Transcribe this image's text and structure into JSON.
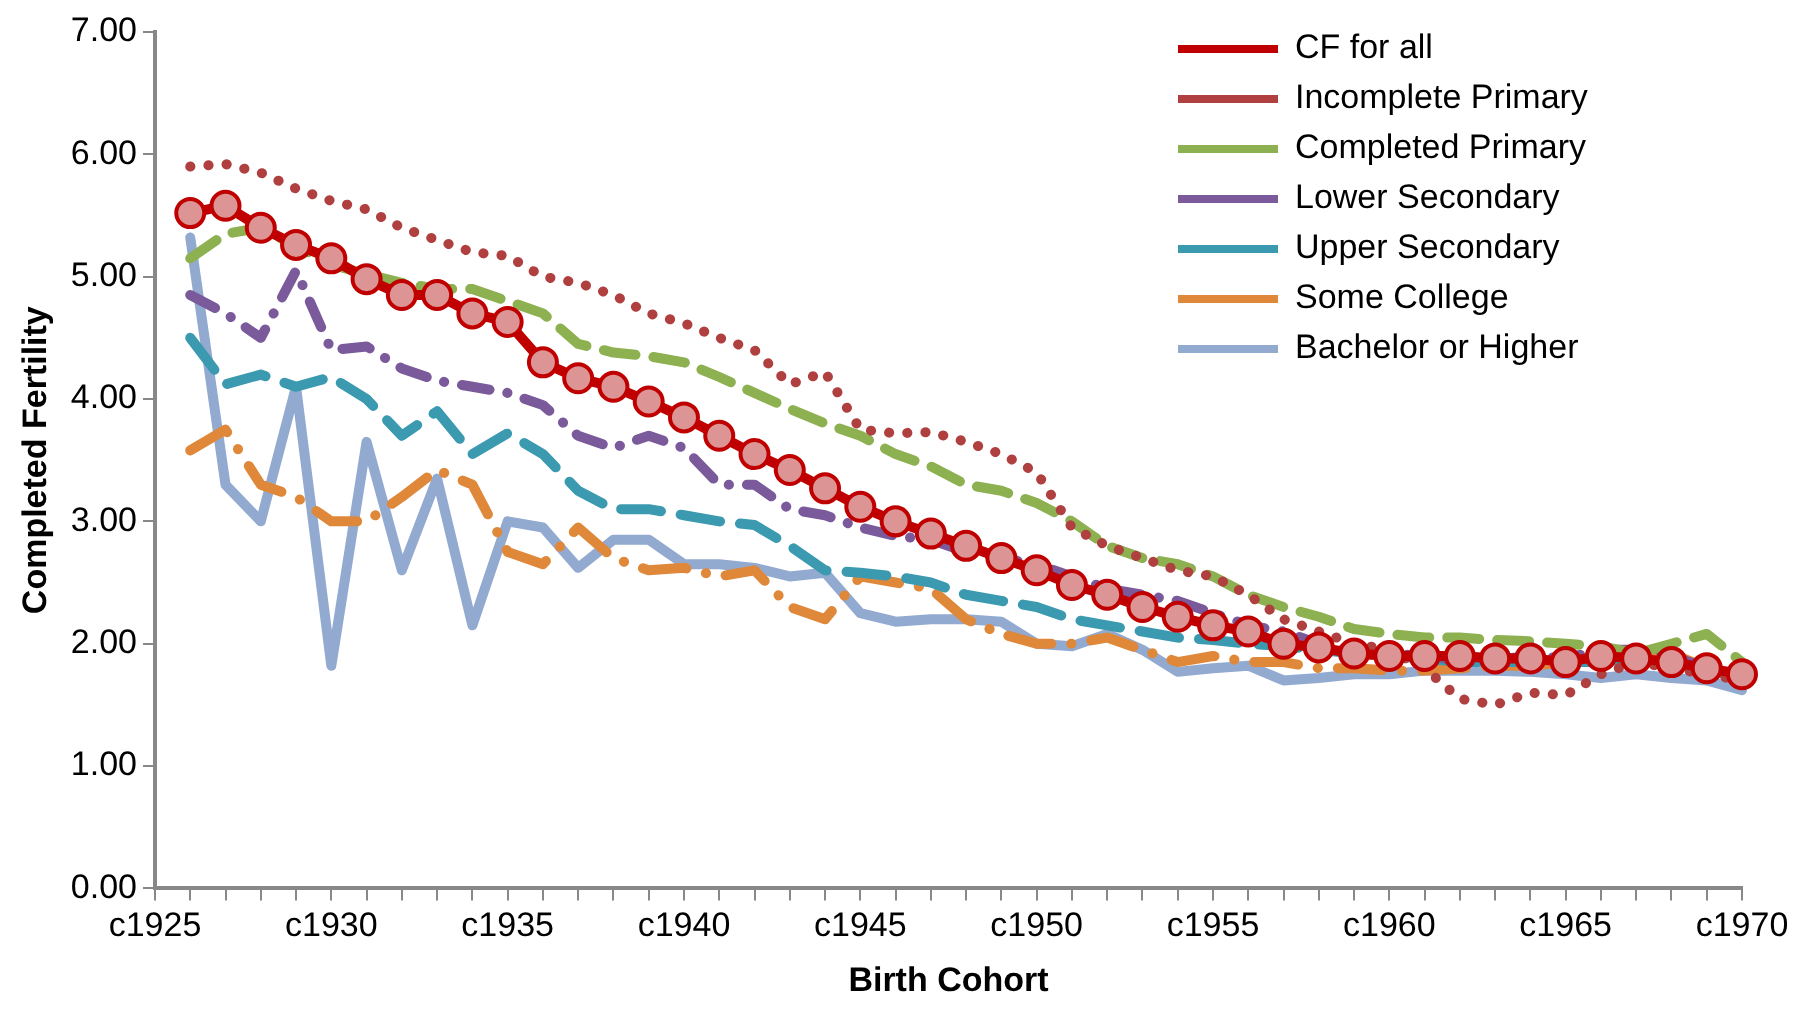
{
  "chart_data": {
    "type": "line",
    "xlabel": "Birth Cohort",
    "ylabel": "Completed Fertility",
    "categories": [
      "c1925",
      null,
      null,
      null,
      null,
      "c1930",
      null,
      null,
      null,
      null,
      "c1935",
      null,
      null,
      null,
      null,
      "c1940",
      null,
      null,
      null,
      null,
      "c1945",
      null,
      null,
      null,
      null,
      "c1950",
      null,
      null,
      null,
      null,
      "c1955",
      null,
      null,
      null,
      null,
      "c1960",
      null,
      null,
      null,
      null,
      "c1965",
      null,
      null,
      null,
      null,
      "c1970"
    ],
    "ylim": [
      0,
      7
    ],
    "yticks": [
      {
        "value": 0,
        "label": "0.00"
      },
      {
        "value": 1,
        "label": "1.00"
      },
      {
        "value": 2,
        "label": "2.00"
      },
      {
        "value": 3,
        "label": "3.00"
      },
      {
        "value": 4,
        "label": "4.00"
      },
      {
        "value": 5,
        "label": "5.00"
      },
      {
        "value": 6,
        "label": "6.00"
      },
      {
        "value": 7,
        "label": "7.00"
      }
    ],
    "grid": false,
    "legend": "top right",
    "series": [
      {
        "name": "CF for all",
        "color": "#c00000",
        "marker": "circle",
        "line_style": "solid",
        "values": [
          null,
          5.52,
          5.58,
          5.4,
          5.26,
          5.15,
          4.98,
          4.85,
          4.85,
          4.7,
          4.63,
          4.3,
          4.17,
          4.1,
          3.98,
          3.85,
          3.7,
          3.55,
          3.42,
          3.27,
          3.12,
          3.0,
          2.9,
          2.8,
          2.7,
          2.6,
          2.48,
          2.4,
          2.3,
          2.22,
          2.15,
          2.1,
          2.0,
          1.97,
          1.92,
          1.9,
          1.9,
          1.9,
          1.88,
          1.88,
          1.85,
          1.9,
          1.88,
          1.85,
          1.8,
          1.75
        ]
      },
      {
        "name": "Incomplete Primary",
        "color": "#b04040",
        "marker": "none",
        "line_style": "dotted",
        "values": [
          null,
          5.9,
          5.92,
          5.85,
          5.72,
          5.62,
          5.55,
          5.4,
          5.3,
          5.2,
          5.17,
          5.0,
          4.95,
          4.85,
          4.7,
          4.62,
          4.5,
          4.4,
          4.12,
          4.22,
          3.75,
          3.72,
          3.73,
          3.65,
          3.55,
          3.4,
          2.95,
          2.8,
          2.7,
          2.6,
          2.55,
          2.4,
          2.2,
          2.1,
          2.0,
          1.95,
          1.8,
          1.55,
          1.5,
          1.6,
          1.58,
          1.75,
          1.85,
          1.8,
          1.75,
          1.7
        ]
      },
      {
        "name": "Completed Primary",
        "color": "#8db050",
        "marker": "none",
        "line_style": "dashed",
        "values": [
          null,
          5.15,
          5.35,
          5.4,
          5.25,
          5.1,
          5.02,
          4.95,
          4.9,
          4.9,
          4.8,
          4.7,
          4.45,
          4.38,
          4.35,
          4.3,
          4.18,
          4.05,
          3.92,
          3.8,
          3.7,
          3.55,
          3.45,
          3.3,
          3.25,
          3.15,
          3.0,
          2.8,
          2.7,
          2.65,
          2.55,
          2.4,
          2.3,
          2.22,
          2.12,
          2.08,
          2.05,
          2.05,
          2.03,
          2.02,
          2.0,
          1.98,
          1.92,
          2.0,
          2.08,
          1.85
        ]
      },
      {
        "name": "Lower Secondary",
        "color": "#7a5a9a",
        "marker": "none",
        "line_style": "dashed",
        "values": [
          null,
          4.85,
          4.7,
          4.5,
          5.05,
          4.4,
          4.43,
          4.25,
          4.15,
          4.1,
          4.05,
          3.95,
          3.7,
          3.6,
          3.7,
          3.6,
          3.3,
          3.3,
          3.1,
          3.05,
          2.95,
          2.88,
          2.85,
          2.75,
          2.7,
          2.65,
          2.55,
          2.45,
          2.4,
          2.35,
          2.25,
          2.15,
          2.1,
          2.0,
          1.95,
          1.9,
          1.92,
          1.85,
          1.87,
          1.9,
          1.88,
          1.95,
          1.95,
          1.9,
          1.8,
          1.7
        ]
      },
      {
        "name": "Upper Secondary",
        "color": "#3b9ab0",
        "marker": "none",
        "line_style": "dashed",
        "values": [
          null,
          4.5,
          4.12,
          4.2,
          4.1,
          4.18,
          4.0,
          3.7,
          3.9,
          3.55,
          3.72,
          3.55,
          3.25,
          3.1,
          3.1,
          3.05,
          3.0,
          2.97,
          2.8,
          2.6,
          2.58,
          2.55,
          2.5,
          2.4,
          2.35,
          2.3,
          2.2,
          2.15,
          2.1,
          2.05,
          2.03,
          2.0,
          1.98,
          1.95,
          1.92,
          1.9,
          1.88,
          1.85,
          1.85,
          1.85,
          1.85,
          1.85,
          1.85,
          1.85,
          1.8,
          1.75
        ]
      },
      {
        "name": "Some College",
        "color": "#e0883a",
        "marker": "none",
        "line_style": "dashed",
        "values": [
          null,
          3.58,
          3.75,
          3.3,
          3.2,
          3.0,
          3.0,
          3.2,
          3.42,
          3.3,
          2.75,
          2.65,
          2.95,
          2.7,
          2.6,
          2.62,
          2.55,
          2.6,
          2.3,
          2.2,
          2.55,
          2.5,
          2.45,
          2.2,
          2.08,
          2.0,
          2.0,
          2.05,
          1.95,
          1.85,
          1.9,
          1.85,
          1.85,
          1.8,
          1.8,
          1.78,
          1.78,
          1.8,
          1.82,
          1.82,
          1.85,
          1.88,
          1.9,
          1.92,
          1.8,
          1.7
        ]
      },
      {
        "name": "Bachelor or Higher",
        "color": "#92a9d0",
        "marker": "none",
        "line_style": "solid",
        "values": [
          null,
          5.32,
          3.3,
          3.0,
          4.1,
          1.82,
          3.65,
          2.6,
          3.35,
          2.15,
          3.0,
          2.95,
          2.62,
          2.85,
          2.85,
          2.65,
          2.65,
          2.62,
          2.55,
          2.58,
          2.25,
          2.18,
          2.2,
          2.2,
          2.18,
          2.0,
          1.98,
          2.08,
          1.95,
          1.77,
          1.8,
          1.82,
          1.7,
          1.72,
          1.75,
          1.75,
          1.78,
          1.78,
          1.78,
          1.77,
          1.75,
          1.72,
          1.75,
          1.72,
          1.7,
          1.62
        ]
      }
    ]
  }
}
